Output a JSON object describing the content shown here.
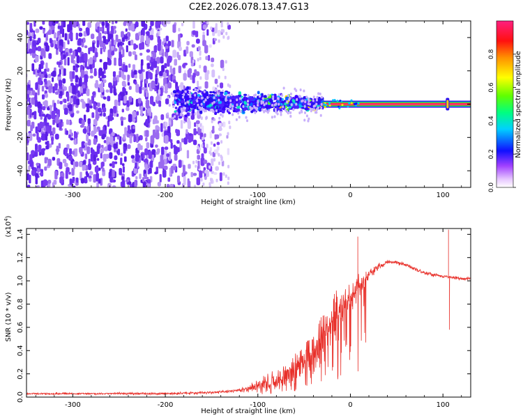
{
  "title": "C2E2.2026.078.13.47.G13",
  "colors": {
    "signal": "#e41a1c",
    "snr_line": "#e8302a",
    "scatter_base": "#7a4be6"
  },
  "chart_data": [
    {
      "type": "heatmap",
      "title": "C2E2.2026.078.13.47.G13",
      "xlabel": "Height of straight line (km)",
      "ylabel": "Frequency (Hz)",
      "xlim": [
        -350,
        130
      ],
      "ylim": [
        -50,
        50
      ],
      "xticks": [
        -300,
        -200,
        -100,
        0,
        100
      ],
      "xtick_labels": [
        "-300",
        "-200",
        "-100",
        "0",
        "100"
      ],
      "yticks": [
        40,
        20,
        0,
        -20,
        -40
      ],
      "ytick_labels": [
        "40",
        "20",
        "0",
        "-20",
        "-40"
      ],
      "colorbar": {
        "label": "Normalized spectral amplitude",
        "range": [
          0.0,
          1.0
        ],
        "ticks": [
          0.0,
          0.2,
          0.4,
          0.6,
          0.8
        ],
        "tick_labels": [
          "0.0",
          "0.2",
          "0.4",
          "0.6",
          "0.8"
        ]
      },
      "features": {
        "noise_region_km": [
          -350,
          -125
        ],
        "signal_onset_km": -190,
        "narrow_line_start_km": -30,
        "carrier_frequency_hz": 0,
        "spike_km": 105
      }
    },
    {
      "type": "line",
      "xlabel": "Height of straight line (km)",
      "ylabel": "SNR (10 * v/v)",
      "y_scale_label": "(x10",
      "y_scale_exponent": "4",
      "xlim": [
        -350,
        130
      ],
      "ylim": [
        0,
        1.45
      ],
      "xticks": [
        -300,
        -200,
        -100,
        0,
        100
      ],
      "xtick_labels": [
        "-300",
        "-200",
        "-100",
        "0",
        "100"
      ],
      "yticks": [
        0.0,
        0.2,
        0.4,
        0.6,
        0.8,
        1.0,
        1.2,
        1.4
      ],
      "ytick_labels": [
        "0.0",
        "0.2",
        "0.4",
        "0.6",
        "0.8",
        "1.0",
        "1.2",
        "1.4"
      ],
      "series": [
        {
          "name": "SNR",
          "points": [
            [
              -350,
              0.03
            ],
            [
              -300,
              0.03
            ],
            [
              -200,
              0.03
            ],
            [
              -150,
              0.04
            ],
            [
              -130,
              0.05
            ],
            [
              -110,
              0.07
            ],
            [
              -100,
              0.09
            ],
            [
              -90,
              0.12
            ],
            [
              -80,
              0.15
            ],
            [
              -70,
              0.2
            ],
            [
              -60,
              0.25
            ],
            [
              -50,
              0.32
            ],
            [
              -40,
              0.42
            ],
            [
              -30,
              0.55
            ],
            [
              -20,
              0.65
            ],
            [
              -10,
              0.78
            ],
            [
              0,
              0.85
            ],
            [
              10,
              0.95
            ],
            [
              20,
              1.05
            ],
            [
              30,
              1.12
            ],
            [
              40,
              1.16
            ],
            [
              50,
              1.16
            ],
            [
              60,
              1.14
            ],
            [
              70,
              1.1
            ],
            [
              80,
              1.07
            ],
            [
              90,
              1.05
            ],
            [
              100,
              1.04
            ],
            [
              110,
              1.03
            ],
            [
              120,
              1.02
            ],
            [
              130,
              1.02
            ]
          ],
          "noise_amplitude": [
            [
              -350,
              0.01
            ],
            [
              -120,
              0.02
            ],
            [
              -90,
              0.1
            ],
            [
              -50,
              0.22
            ],
            [
              -20,
              0.3
            ],
            [
              0,
              0.22
            ],
            [
              20,
              0.06
            ],
            [
              40,
              0.025
            ],
            [
              130,
              0.02
            ]
          ],
          "spikes": [
            {
              "x": 8,
              "y": 1.38
            },
            {
              "x": 106,
              "y": 1.44
            },
            {
              "x": 107,
              "y": 0.58
            }
          ]
        }
      ]
    }
  ]
}
